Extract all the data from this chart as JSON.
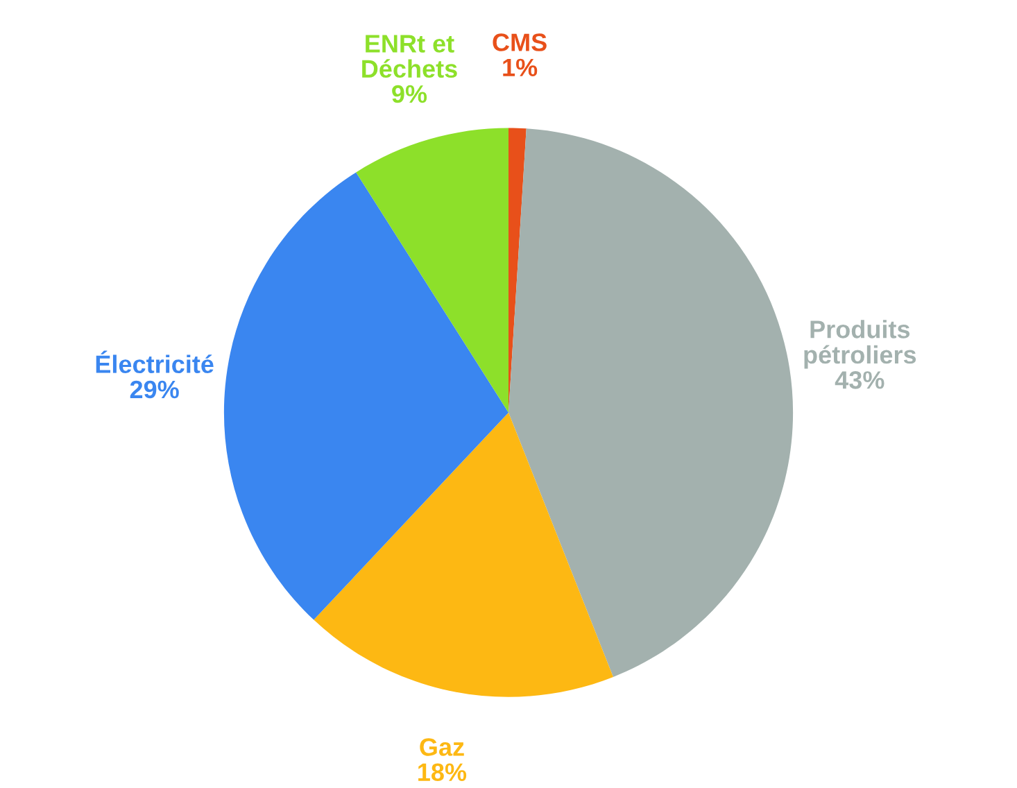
{
  "chart_data": {
    "type": "pie",
    "categories": [
      "CMS",
      "Produits pétroliers",
      "Gaz",
      "Électricité",
      "ENRt et Déchets"
    ],
    "values": [
      1,
      43,
      18,
      29,
      9
    ],
    "colors": [
      "#e8501a",
      "#a3b1ae",
      "#fdb813",
      "#3a86f0",
      "#8de02a"
    ],
    "value_labels": [
      "1%",
      "43%",
      "18%",
      "29%",
      "9%"
    ]
  }
}
